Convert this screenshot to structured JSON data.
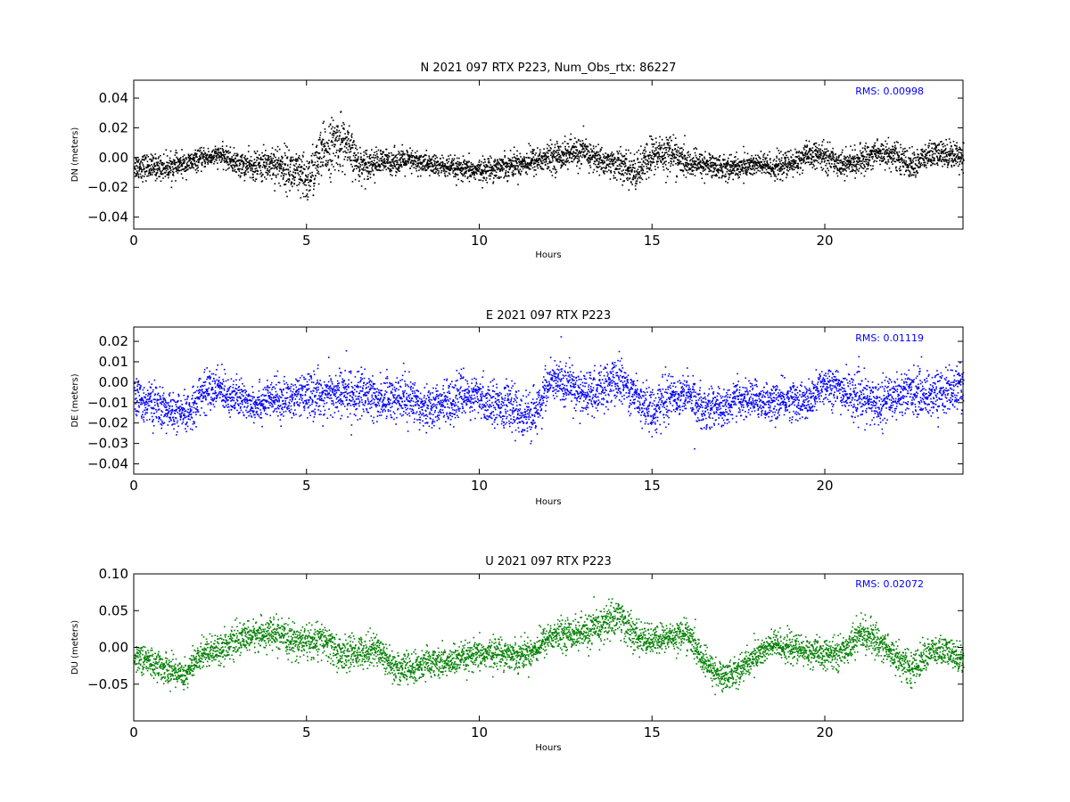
{
  "chart_data": [
    {
      "type": "scatter",
      "title": "N 2021 097 RTX  P223, Num_Obs_rtx: 86227",
      "xlabel": "Hours",
      "ylabel": "DN (meters)",
      "xlim": [
        0,
        24
      ],
      "ylim": [
        -0.048,
        0.052
      ],
      "xticks": [
        0,
        5,
        10,
        15,
        20
      ],
      "yticks": [
        -0.04,
        -0.02,
        0.0,
        0.02,
        0.04
      ],
      "ytick_labels": [
        "−0.04",
        "−0.02",
        "0.00",
        "0.02",
        "0.04"
      ],
      "annotation": "RMS:  0.00998",
      "annotation_color": "#0000ff",
      "series": [
        {
          "color": "#000000",
          "x": [
            0,
            0.5,
            1,
            1.5,
            2,
            2.5,
            3,
            3.5,
            4,
            4.5,
            5,
            5.5,
            6,
            6.5,
            7,
            7.5,
            8,
            8.5,
            9,
            9.5,
            10,
            10.5,
            11,
            11.5,
            12,
            12.5,
            13,
            13.5,
            14,
            14.5,
            15,
            15.5,
            16,
            16.5,
            17,
            17.5,
            18,
            18.5,
            19,
            19.5,
            20,
            20.5,
            21,
            21.5,
            22,
            22.5,
            23,
            23.5,
            24
          ],
          "center": [
            -0.005,
            -0.006,
            -0.006,
            -0.004,
            0.0,
            0.002,
            -0.004,
            -0.006,
            -0.003,
            -0.008,
            -0.015,
            0.005,
            0.012,
            -0.004,
            -0.003,
            -0.002,
            -0.002,
            -0.004,
            -0.006,
            -0.008,
            -0.008,
            -0.006,
            -0.004,
            -0.002,
            0.0,
            0.003,
            0.004,
            -0.002,
            -0.004,
            -0.01,
            0.002,
            0.004,
            -0.004,
            -0.004,
            -0.006,
            -0.006,
            -0.004,
            -0.006,
            -0.004,
            0.002,
            0.001,
            -0.004,
            -0.002,
            0.004,
            0.002,
            -0.005,
            0.002,
            0.003,
            0.002
          ],
          "spread": [
            0.01,
            0.009,
            0.009,
            0.008,
            0.007,
            0.007,
            0.009,
            0.01,
            0.014,
            0.016,
            0.018,
            0.02,
            0.02,
            0.012,
            0.01,
            0.009,
            0.009,
            0.008,
            0.008,
            0.008,
            0.008,
            0.009,
            0.009,
            0.01,
            0.01,
            0.011,
            0.011,
            0.01,
            0.011,
            0.013,
            0.015,
            0.014,
            0.01,
            0.009,
            0.009,
            0.009,
            0.009,
            0.009,
            0.01,
            0.009,
            0.01,
            0.009,
            0.01,
            0.01,
            0.01,
            0.01,
            0.01,
            0.01,
            0.01
          ]
        }
      ]
    },
    {
      "type": "scatter",
      "title": "E 2021 097 RTX  P223",
      "xlabel": "Hours",
      "ylabel": "DE (meters)",
      "xlim": [
        0,
        24
      ],
      "ylim": [
        -0.045,
        0.027
      ],
      "xticks": [
        0,
        5,
        10,
        15,
        20
      ],
      "yticks": [
        -0.04,
        -0.03,
        -0.02,
        -0.01,
        0.0,
        0.01,
        0.02
      ],
      "ytick_labels": [
        "−0.04",
        "−0.03",
        "−0.02",
        "−0.01",
        "0.00",
        "0.01",
        "0.02"
      ],
      "annotation": "RMS:  0.01119",
      "annotation_color": "#0000ff",
      "series": [
        {
          "color": "#0000ff",
          "x": [
            0,
            0.5,
            1,
            1.5,
            2,
            2.5,
            3,
            3.5,
            4,
            4.5,
            5,
            5.5,
            6,
            6.5,
            7,
            7.5,
            8,
            8.5,
            9,
            9.5,
            10,
            10.5,
            11,
            11.5,
            12,
            12.5,
            13,
            13.5,
            14,
            14.5,
            15,
            15.5,
            16,
            16.5,
            17,
            17.5,
            18,
            18.5,
            19,
            19.5,
            20,
            20.5,
            21,
            21.5,
            22,
            22.5,
            23,
            23.5,
            24
          ],
          "center": [
            -0.008,
            -0.01,
            -0.014,
            -0.016,
            -0.004,
            -0.003,
            -0.008,
            -0.01,
            -0.008,
            -0.008,
            -0.006,
            -0.006,
            -0.005,
            -0.006,
            -0.008,
            -0.007,
            -0.008,
            -0.012,
            -0.01,
            -0.006,
            -0.008,
            -0.01,
            -0.013,
            -0.018,
            0.0,
            0.0,
            -0.006,
            -0.004,
            0.002,
            -0.006,
            -0.014,
            -0.006,
            -0.006,
            -0.012,
            -0.012,
            -0.008,
            -0.008,
            -0.01,
            -0.008,
            -0.01,
            0.0,
            -0.004,
            -0.008,
            -0.01,
            -0.006,
            -0.004,
            -0.006,
            -0.004,
            -0.002
          ],
          "spread": [
            0.011,
            0.011,
            0.01,
            0.01,
            0.011,
            0.011,
            0.01,
            0.01,
            0.01,
            0.011,
            0.011,
            0.012,
            0.013,
            0.013,
            0.012,
            0.012,
            0.012,
            0.012,
            0.011,
            0.011,
            0.011,
            0.011,
            0.012,
            0.012,
            0.011,
            0.012,
            0.012,
            0.012,
            0.012,
            0.011,
            0.012,
            0.012,
            0.011,
            0.011,
            0.01,
            0.01,
            0.01,
            0.01,
            0.01,
            0.01,
            0.011,
            0.011,
            0.012,
            0.012,
            0.012,
            0.012,
            0.012,
            0.012,
            0.011
          ]
        }
      ]
    },
    {
      "type": "scatter",
      "title": "U 2021 097 RTX  P223",
      "xlabel": "Hours",
      "ylabel": "DU (meters)",
      "xlim": [
        0,
        24
      ],
      "ylim": [
        -0.1,
        0.1
      ],
      "xticks": [
        0,
        5,
        10,
        15,
        20
      ],
      "yticks": [
        -0.05,
        0.0,
        0.05,
        0.1
      ],
      "ytick_labels": [
        "−0.05",
        "0.00",
        "0.05",
        "0.10"
      ],
      "annotation": "RMS:  0.02072",
      "annotation_color": "#0000ff",
      "series": [
        {
          "color": "#008000",
          "x": [
            0,
            0.5,
            1,
            1.5,
            2,
            2.5,
            3,
            3.5,
            4,
            4.5,
            5,
            5.5,
            6,
            6.5,
            7,
            7.5,
            8,
            8.5,
            9,
            9.5,
            10,
            10.5,
            11,
            11.5,
            12,
            12.5,
            13,
            13.5,
            14,
            14.5,
            15,
            15.5,
            16,
            16.5,
            17,
            17.5,
            18,
            18.5,
            19,
            19.5,
            20,
            20.5,
            21,
            21.5,
            22,
            22.5,
            23,
            23.5,
            24
          ],
          "center": [
            -0.01,
            -0.02,
            -0.03,
            -0.035,
            -0.005,
            0.0,
            0.01,
            0.018,
            0.02,
            0.01,
            0.008,
            0.01,
            -0.01,
            -0.005,
            0.0,
            -0.025,
            -0.03,
            -0.02,
            -0.02,
            -0.015,
            -0.01,
            -0.005,
            -0.01,
            -0.005,
            0.015,
            0.02,
            0.02,
            0.03,
            0.045,
            0.015,
            0.01,
            0.015,
            0.02,
            -0.02,
            -0.04,
            -0.03,
            -0.01,
            0.005,
            0.0,
            -0.005,
            -0.01,
            -0.005,
            0.02,
            0.01,
            -0.01,
            -0.03,
            -0.005,
            -0.005,
            -0.015
          ],
          "spread": [
            0.022,
            0.022,
            0.022,
            0.022,
            0.022,
            0.022,
            0.022,
            0.022,
            0.022,
            0.024,
            0.026,
            0.026,
            0.026,
            0.024,
            0.024,
            0.024,
            0.024,
            0.022,
            0.022,
            0.022,
            0.022,
            0.022,
            0.022,
            0.022,
            0.022,
            0.022,
            0.026,
            0.028,
            0.03,
            0.024,
            0.022,
            0.022,
            0.022,
            0.022,
            0.022,
            0.022,
            0.022,
            0.022,
            0.022,
            0.022,
            0.022,
            0.022,
            0.024,
            0.024,
            0.024,
            0.024,
            0.022,
            0.022,
            0.022
          ]
        }
      ]
    }
  ]
}
